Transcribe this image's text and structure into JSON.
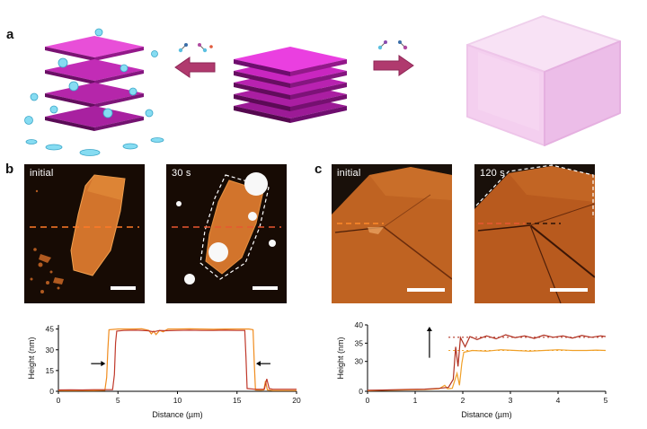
{
  "panel_a": {
    "label": "a"
  },
  "panel_b": {
    "label": "b",
    "images": [
      {
        "time": "initial"
      },
      {
        "time": "30 s"
      }
    ]
  },
  "panel_c": {
    "label": "c",
    "images": [
      {
        "time": "initial"
      },
      {
        "time": "120 s"
      }
    ]
  },
  "colors": {
    "flake_orange": "#d2742c",
    "afm_background": "#170b04",
    "schematic_magenta": "#e23ee2",
    "arrow_maroon": "#b03a6e",
    "droplet_blue": "#86dcf2",
    "series_initial_b": "#f08c1e",
    "series_30s": "#c0392b",
    "series_initial_c": "#f0a028",
    "series_120s": "#b03020"
  },
  "chart_data": [
    {
      "id": "profile-b",
      "type": "line",
      "title": "",
      "xlabel": "Distance (µm)",
      "ylabel": "Height (nm)",
      "xlim": [
        0,
        20
      ],
      "x_ticks": [
        0,
        5,
        10,
        15,
        20
      ],
      "ylim": [
        0,
        48
      ],
      "y_ticks": [
        0,
        15,
        30,
        45
      ],
      "series": [
        {
          "name": "initial",
          "color": "#f08c1e",
          "points": [
            [
              0,
              0.5
            ],
            [
              1,
              0.6
            ],
            [
              2,
              0.5
            ],
            [
              3,
              0.6
            ],
            [
              3.9,
              0.7
            ],
            [
              4.05,
              10
            ],
            [
              4.15,
              30
            ],
            [
              4.25,
              44.5
            ],
            [
              5,
              45
            ],
            [
              6,
              45
            ],
            [
              7,
              45.2
            ],
            [
              7.6,
              44
            ],
            [
              7.8,
              41.5
            ],
            [
              8.0,
              43.5
            ],
            [
              8.2,
              41
            ],
            [
              8.5,
              44
            ],
            [
              8.8,
              43
            ],
            [
              9.2,
              45
            ],
            [
              10,
              45
            ],
            [
              11,
              45.2
            ],
            [
              12,
              45
            ],
            [
              13,
              44.8
            ],
            [
              14,
              45
            ],
            [
              15,
              45
            ],
            [
              16,
              45
            ],
            [
              16.35,
              44.5
            ],
            [
              16.45,
              20
            ],
            [
              16.55,
              1
            ],
            [
              17,
              0.8
            ],
            [
              17.25,
              1
            ],
            [
              17.4,
              7.5
            ],
            [
              17.55,
              1
            ],
            [
              18,
              0.6
            ],
            [
              19,
              0.5
            ],
            [
              20,
              0.5
            ]
          ]
        },
        {
          "name": "30 s",
          "color": "#c0392b",
          "points": [
            [
              0,
              1
            ],
            [
              1,
              1.1
            ],
            [
              2,
              1
            ],
            [
              3,
              1.2
            ],
            [
              4.55,
              1.2
            ],
            [
              4.7,
              12
            ],
            [
              4.8,
              35
            ],
            [
              4.9,
              43.5
            ],
            [
              5.5,
              44
            ],
            [
              6.5,
              44.2
            ],
            [
              7.5,
              43.8
            ],
            [
              8,
              43
            ],
            [
              8.5,
              44
            ],
            [
              9,
              43.8
            ],
            [
              10,
              44
            ],
            [
              11,
              44.2
            ],
            [
              12,
              44
            ],
            [
              13,
              44
            ],
            [
              14,
              44.2
            ],
            [
              15,
              44
            ],
            [
              15.65,
              44
            ],
            [
              15.75,
              25
            ],
            [
              15.85,
              2
            ],
            [
              16.5,
              1.5
            ],
            [
              17.3,
              1.5
            ],
            [
              17.5,
              9
            ],
            [
              17.7,
              2
            ],
            [
              18,
              1.5
            ],
            [
              19,
              1.5
            ],
            [
              20,
              1.5
            ]
          ]
        }
      ],
      "annotations": [
        {
          "type": "arrow-right",
          "x": 3.95,
          "y": 20
        },
        {
          "type": "arrow-left",
          "x": 16.6,
          "y": 20
        }
      ]
    },
    {
      "id": "profile-c",
      "type": "line",
      "title": "",
      "xlabel": "Distance (µm)",
      "ylabel": "Height (nm)",
      "xlim": [
        0,
        5
      ],
      "x_ticks": [
        0,
        1,
        2,
        3,
        4,
        5
      ],
      "ylim": [
        0,
        40
      ],
      "y_ticks": [
        0,
        30,
        35,
        40
      ],
      "y_break": {
        "to": 30,
        "frac": 0.45
      },
      "series": [
        {
          "name": "initial",
          "color": "#f0a028",
          "points": [
            [
              0,
              0.5
            ],
            [
              0.3,
              1
            ],
            [
              0.6,
              1.2
            ],
            [
              0.9,
              1.5
            ],
            [
              1.2,
              1.8
            ],
            [
              1.5,
              2.5
            ],
            [
              1.62,
              6
            ],
            [
              1.68,
              2.5
            ],
            [
              1.78,
              3
            ],
            [
              1.88,
              18
            ],
            [
              1.93,
              6
            ],
            [
              1.98,
              28
            ],
            [
              2.02,
              32.5
            ],
            [
              2.2,
              33
            ],
            [
              2.5,
              32.8
            ],
            [
              2.8,
              33.2
            ],
            [
              3.1,
              33
            ],
            [
              3.4,
              32.8
            ],
            [
              3.7,
              33
            ],
            [
              4.0,
              33.2
            ],
            [
              4.3,
              33
            ],
            [
              4.6,
              33
            ],
            [
              4.8,
              33.1
            ],
            [
              5,
              33
            ]
          ]
        },
        {
          "name": "120 s",
          "color": "#b03020",
          "points": [
            [
              0,
              1
            ],
            [
              0.3,
              1.3
            ],
            [
              0.6,
              1.6
            ],
            [
              0.9,
              2
            ],
            [
              1.2,
              2.2
            ],
            [
              1.5,
              3
            ],
            [
              1.7,
              4
            ],
            [
              1.8,
              12
            ],
            [
              1.85,
              34
            ],
            [
              1.9,
              25
            ],
            [
              1.95,
              36.5
            ],
            [
              2.05,
              34
            ],
            [
              2.15,
              36.8
            ],
            [
              2.3,
              36
            ],
            [
              2.5,
              37
            ],
            [
              2.7,
              36.2
            ],
            [
              2.9,
              37.3
            ],
            [
              3.1,
              36.5
            ],
            [
              3.3,
              37
            ],
            [
              3.5,
              36.3
            ],
            [
              3.7,
              37.2
            ],
            [
              3.9,
              36.6
            ],
            [
              4.1,
              37
            ],
            [
              4.3,
              36.4
            ],
            [
              4.5,
              37.1
            ],
            [
              4.7,
              36.6
            ],
            [
              4.9,
              37
            ],
            [
              5,
              36.8
            ]
          ]
        }
      ],
      "ref_lines": [
        {
          "y": 33,
          "x1": 1.7,
          "x2": 5,
          "color": "#f0a028"
        },
        {
          "y": 36.6,
          "x1": 1.7,
          "x2": 5,
          "color": "#b03020"
        }
      ],
      "annotations": [
        {
          "type": "arrow-up",
          "x": 1.3,
          "y1": 31,
          "y2": 39.5
        }
      ]
    }
  ]
}
